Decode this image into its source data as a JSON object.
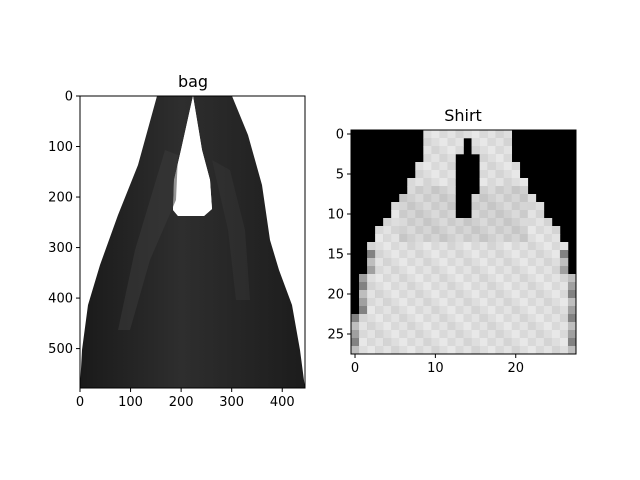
{
  "chart_data": [
    {
      "type": "image",
      "title": "bag",
      "image_width": 445,
      "image_height": 578,
      "xlim": [
        0,
        445
      ],
      "ylim": [
        578,
        0
      ],
      "xticks": [
        0,
        100,
        200,
        300,
        400
      ],
      "yticks": [
        0,
        100,
        200,
        300,
        400,
        500
      ],
      "colors": {
        "bag": "#222222",
        "background": "#ffffff"
      }
    },
    {
      "type": "image",
      "title": "Shirt",
      "image_width": 28,
      "image_height": 28,
      "xlim": [
        -0.5,
        27.5
      ],
      "ylim": [
        27.5,
        -0.5
      ],
      "xticks": [
        0,
        10,
        20
      ],
      "yticks": [
        0,
        5,
        10,
        15,
        20,
        25
      ],
      "colors": {
        "shape": "#e8e8e8",
        "background": "#000000"
      }
    }
  ]
}
